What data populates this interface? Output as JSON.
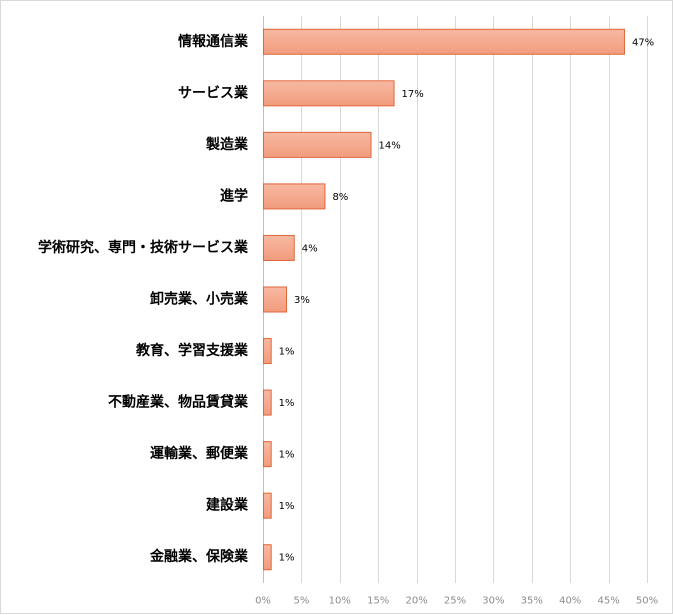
{
  "chart_data": {
    "type": "bar",
    "orientation": "horizontal",
    "categories": [
      "情報通信業",
      "サービス業",
      "製造業",
      "進学",
      "学術研究、専門・技術サービス業",
      "卸売業、小売業",
      "教育、学習支援業",
      "不動産業、物品賃貸業",
      "運輸業、郵便業",
      "建設業",
      "金融業、保険業"
    ],
    "values": [
      47,
      17,
      14,
      8,
      4,
      3,
      1,
      1,
      1,
      1,
      1
    ],
    "data_labels": [
      "47%",
      "17%",
      "14%",
      "8%",
      "4%",
      "3%",
      "1%",
      "1%",
      "1%",
      "1%",
      "1%"
    ],
    "x_ticks": [
      0,
      5,
      10,
      15,
      20,
      25,
      30,
      35,
      40,
      45,
      50
    ],
    "x_tick_labels": [
      "0%",
      "5%",
      "10%",
      "15%",
      "20%",
      "25%",
      "30%",
      "35%",
      "40%",
      "45%",
      "50%"
    ],
    "xlim": [
      0,
      50
    ],
    "unit": "%",
    "grid": "vertical",
    "legend": "none",
    "title": "",
    "xlabel": "",
    "ylabel": "",
    "colors": {
      "bar_fill_top": "#f7b9a2",
      "bar_fill_bottom": "#f29c7d",
      "bar_stroke": "#e0663a",
      "grid": "#d9d9d9",
      "axis": "#bfbfbf",
      "tick_text": "#8c8c8c",
      "label_text": "#000000"
    }
  }
}
